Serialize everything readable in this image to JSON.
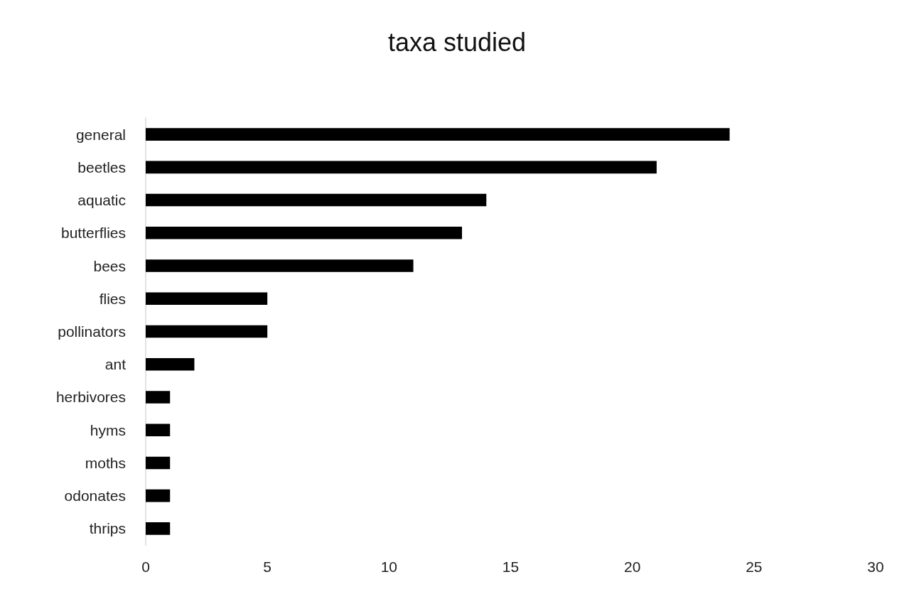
{
  "chart_data": {
    "type": "bar",
    "orientation": "horizontal",
    "title": "taxa studied",
    "categories": [
      "general",
      "beetles",
      "aquatic",
      "butterflies",
      "bees",
      "flies",
      "pollinators",
      "ant",
      "herbivores",
      "hyms",
      "moths",
      "odonates",
      "thrips"
    ],
    "values": [
      24,
      21,
      14,
      13,
      11,
      5,
      5,
      2,
      1,
      1,
      1,
      1,
      1
    ],
    "color": "#000000",
    "xlim": [
      0,
      30
    ],
    "xticks": [
      0,
      5,
      10,
      15,
      20,
      25,
      30
    ],
    "grid": false
  }
}
